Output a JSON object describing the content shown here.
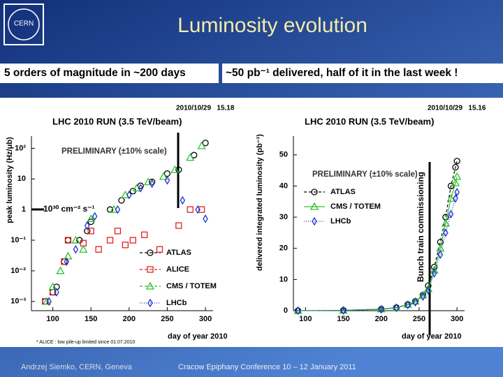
{
  "header": {
    "title": "Luminosity evolution",
    "logo": "CERN"
  },
  "banner": [
    "5 orders of magnitude in ~200 days",
    "~50 pb⁻¹ delivered, half of it in the last week !"
  ],
  "footer": [
    "Andrzej Siemko, CERN, Geneva",
    "Cracow Epiphany Conference   10 – 12 January 2011"
  ],
  "chart_data": [
    {
      "type": "scatter",
      "title": "LHC 2010 RUN (3.5 TeV/beam)",
      "timestamp": "2010/10/29   15.18",
      "subtitle": "PRELIMINARY (±10% scale)",
      "xlabel": "day of year 2010",
      "ylabel": "peak luminosity (Hz/μb)",
      "annotation": "10³⁰ cm⁻² s⁻¹",
      "footnote": "* ALICE : low pile-up limited since 01.07.2010",
      "log_y": true,
      "xlim": [
        72,
        310
      ],
      "ylim": [
        0.0005,
        250
      ],
      "xticks": [
        100,
        150,
        200,
        250,
        300
      ],
      "yticks": [
        {
          "value": 0.001,
          "label": "10⁻³"
        },
        {
          "value": 0.01,
          "label": "10⁻²"
        },
        {
          "value": 0.1,
          "label": "10⁻¹"
        },
        1,
        10,
        {
          "value": 100,
          "label": "10²"
        }
      ],
      "series": [
        {
          "name": "ATLAS",
          "color": "#000000",
          "marker": "circle",
          "dash": "4,3",
          "x": [
            90,
            100,
            105,
            115,
            120,
            135,
            145,
            150,
            175,
            190,
            205,
            215,
            230,
            250,
            265,
            285,
            300
          ],
          "values": [
            0.001,
            0.002,
            0.003,
            0.02,
            0.1,
            0.1,
            0.2,
            0.4,
            1,
            2,
            4,
            6,
            8,
            15,
            20,
            60,
            150
          ]
        },
        {
          "name": "ALICE",
          "color": "#e02020",
          "marker": "square",
          "dash": "4,3",
          "x": [
            90,
            100,
            115,
            120,
            140,
            150,
            160,
            175,
            185,
            195,
            205,
            220,
            240,
            265,
            280,
            295
          ],
          "values": [
            0.001,
            0.002,
            0.02,
            0.1,
            0.08,
            0.2,
            0.05,
            0.1,
            0.2,
            0.07,
            0.1,
            0.15,
            0.05,
            0.3,
            1,
            1
          ]
        },
        {
          "name": "CMS / TOTEM",
          "color": "#30c030",
          "marker": "triangle",
          "dash": "4,3",
          "x": [
            92,
            100,
            110,
            120,
            130,
            140,
            150,
            180,
            195,
            210,
            225,
            245,
            260,
            280,
            295
          ],
          "values": [
            0.001,
            0.003,
            0.01,
            0.03,
            0.1,
            0.05,
            0.5,
            1,
            3,
            5,
            8,
            12,
            20,
            50,
            120
          ]
        },
        {
          "name": "LHCb",
          "color": "#2030d0",
          "marker": "diamond",
          "dash": "1,2",
          "x": [
            95,
            105,
            118,
            130,
            145,
            155,
            185,
            200,
            215,
            230,
            250,
            270,
            290,
            300
          ],
          "values": [
            0.001,
            0.002,
            0.02,
            0.05,
            0.3,
            0.6,
            1,
            3,
            5,
            7,
            9,
            2,
            1,
            0.5
          ]
        }
      ]
    },
    {
      "type": "line",
      "title": "LHC 2010 RUN (3.5 TeV/beam)",
      "timestamp": "2010/10/29   15.16",
      "subtitle": "PRELIMINARY (±10% scale)",
      "xlabel": "day of year 2010",
      "ylabel": "delivered integrated luminosity (pb⁻¹)",
      "annotation": "Bunch train commissioning",
      "log_y": false,
      "xlim": [
        84,
        310
      ],
      "ylim": [
        0,
        56
      ],
      "xticks": [
        100,
        150,
        200,
        250,
        300
      ],
      "yticks": [
        0,
        10,
        20,
        30,
        40,
        50
      ],
      "series": [
        {
          "name": "ATLAS",
          "color": "#000000",
          "marker": "circle",
          "dash": "4,3",
          "x": [
            90,
            150,
            200,
            220,
            235,
            245,
            255,
            262,
            270,
            278,
            285,
            292,
            298,
            300
          ],
          "values": [
            0,
            0.1,
            0.5,
            1,
            2,
            3,
            5,
            8,
            14,
            22,
            30,
            40,
            46,
            48
          ]
        },
        {
          "name": "CMS / TOTEM",
          "color": "#30c030",
          "marker": "triangle",
          "dash": "",
          "x": [
            90,
            150,
            200,
            220,
            235,
            245,
            255,
            262,
            270,
            278,
            285,
            292,
            298,
            300
          ],
          "values": [
            0,
            0.1,
            0.5,
            1,
            2,
            3,
            5,
            7,
            13,
            20,
            28,
            36,
            41,
            43
          ]
        },
        {
          "name": "LHCb",
          "color": "#2030d0",
          "marker": "diamond",
          "dash": "1,2",
          "x": [
            90,
            150,
            200,
            220,
            235,
            245,
            255,
            262,
            270,
            278,
            285,
            292,
            298,
            300
          ],
          "values": [
            0,
            0.1,
            0.4,
            0.9,
            1.8,
            2.7,
            4.5,
            6.5,
            12,
            18,
            25,
            31,
            36,
            38
          ]
        }
      ]
    }
  ]
}
